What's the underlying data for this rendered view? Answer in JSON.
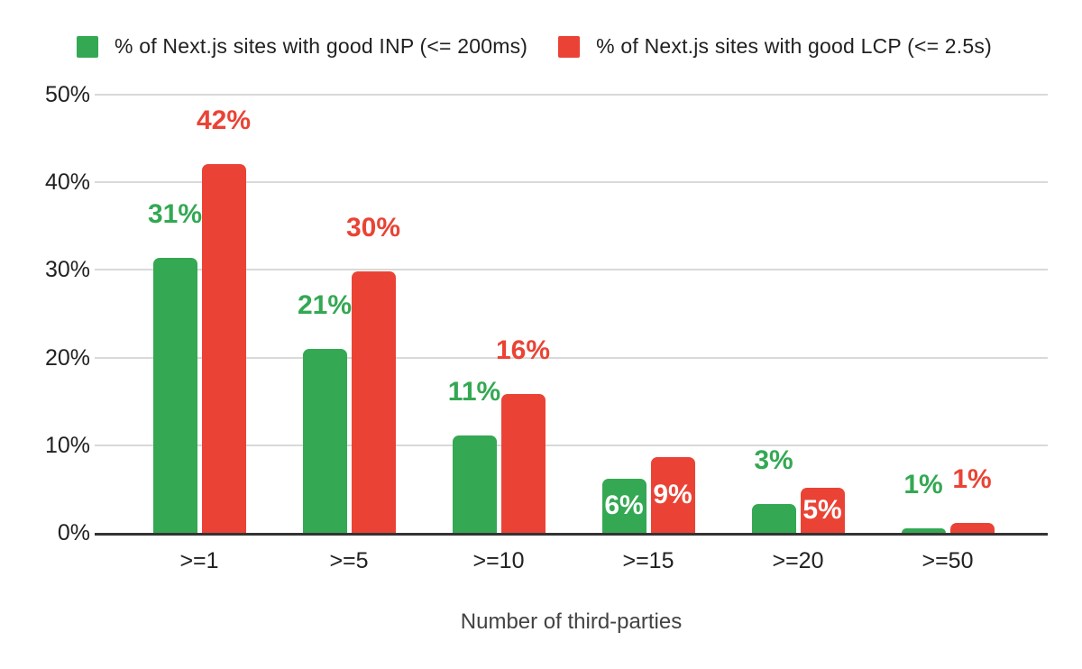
{
  "legend": [
    {
      "label": "% of Next.js sites with good INP (<= 200ms)",
      "color": "#34a853"
    },
    {
      "label": "% of Next.js sites with good LCP (<= 2.5s)",
      "color": "#ea4335"
    }
  ],
  "colors": {
    "series_inp_green": "#34a853",
    "series_lcp_red": "#ea4335",
    "gridline": "#d9d9d9",
    "axis_baseline": "#333333",
    "tick_text": "#212121",
    "axis_title_text": "#424242",
    "inside_label_text": "#ffffff",
    "background": "#ffffff"
  },
  "chart_data": {
    "type": "bar",
    "title": "",
    "xlabel": "Number of third-parties",
    "ylabel": "",
    "categories": [
      ">=1",
      ">=5",
      ">=10",
      ">=15",
      ">=20",
      ">=50"
    ],
    "y_ticks": [
      "50%",
      "40%",
      "30%",
      "20%",
      "10%",
      "0%"
    ],
    "ylim": [
      0,
      50
    ],
    "grid": true,
    "legend_position": "top",
    "series": [
      {
        "name": "% of Next.js sites with good INP (<= 200ms)",
        "color": "#34a853",
        "values": [
          31,
          21,
          11,
          6,
          3,
          1
        ],
        "labels": [
          "31%",
          "21%",
          "11%",
          "6%",
          "3%",
          "1%"
        ],
        "values_precise": [
          31.4,
          21.0,
          11.1,
          6.2,
          3.3,
          0.5
        ],
        "label_placement": [
          "above",
          "above",
          "above",
          "inside",
          "above",
          "above"
        ]
      },
      {
        "name": "% of Next.js sites with good LCP (<= 2.5s)",
        "color": "#ea4335",
        "values": [
          42,
          30,
          16,
          9,
          5,
          1
        ],
        "labels": [
          "42%",
          "30%",
          "16%",
          "9%",
          "5%",
          "1%"
        ],
        "values_precise": [
          42.1,
          29.8,
          15.8,
          8.6,
          5.1,
          1.1
        ],
        "label_placement": [
          "above",
          "above",
          "above",
          "inside",
          "inside",
          "above"
        ]
      }
    ]
  }
}
